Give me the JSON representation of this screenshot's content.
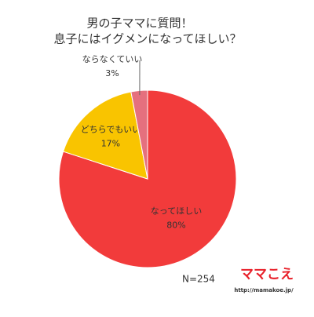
{
  "chart_data": {
    "type": "pie",
    "title": [
      "男の子ママに質問！",
      "息子にはイグメンになってほしい？"
    ],
    "categories": [
      "なってほしい",
      "どちらでもいい",
      "ならなくていい"
    ],
    "values": [
      80,
      17,
      3
    ],
    "value_labels": [
      "80%",
      "17%",
      "3%"
    ],
    "colors": [
      "#f23b3b",
      "#f9c400",
      "#e5707e"
    ],
    "annotation": "N=254",
    "logo": "ママこえ",
    "url": "http://mamakoe.jp/"
  }
}
